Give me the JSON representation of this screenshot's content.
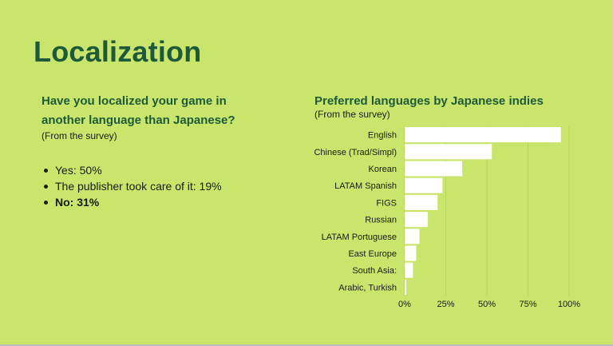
{
  "slide": {
    "title": "Localization",
    "question": "Have you localized your game in another language than Japanese?",
    "note": "(From the survey)",
    "answers": [
      {
        "text": "Yes: 50%",
        "bold": false
      },
      {
        "text": "The publisher took care of it: 19%",
        "bold": false
      },
      {
        "text": "No: 31%",
        "bold": true
      }
    ]
  },
  "chart_data": {
    "type": "bar",
    "orientation": "horizontal",
    "title": "Preferred languages by Japanese indies",
    "subtitle": "(From the survey)",
    "categories": [
      "English",
      "Chinese (Trad/Simpl)",
      "Korean",
      "LATAM Spanish",
      "FIGS",
      "Russian",
      "LATAM Portuguese",
      "East Europe",
      "South Asia:",
      "Arabic, Turkish"
    ],
    "values": [
      95,
      53,
      35,
      23,
      20,
      14,
      9,
      7,
      5,
      1
    ],
    "ticks": [
      "0%",
      "25%",
      "50%",
      "75%",
      "100%"
    ],
    "xlim": [
      0,
      100
    ],
    "grid": true,
    "bar_color": "#ffffff",
    "grid_color": "#b7d45e"
  }
}
